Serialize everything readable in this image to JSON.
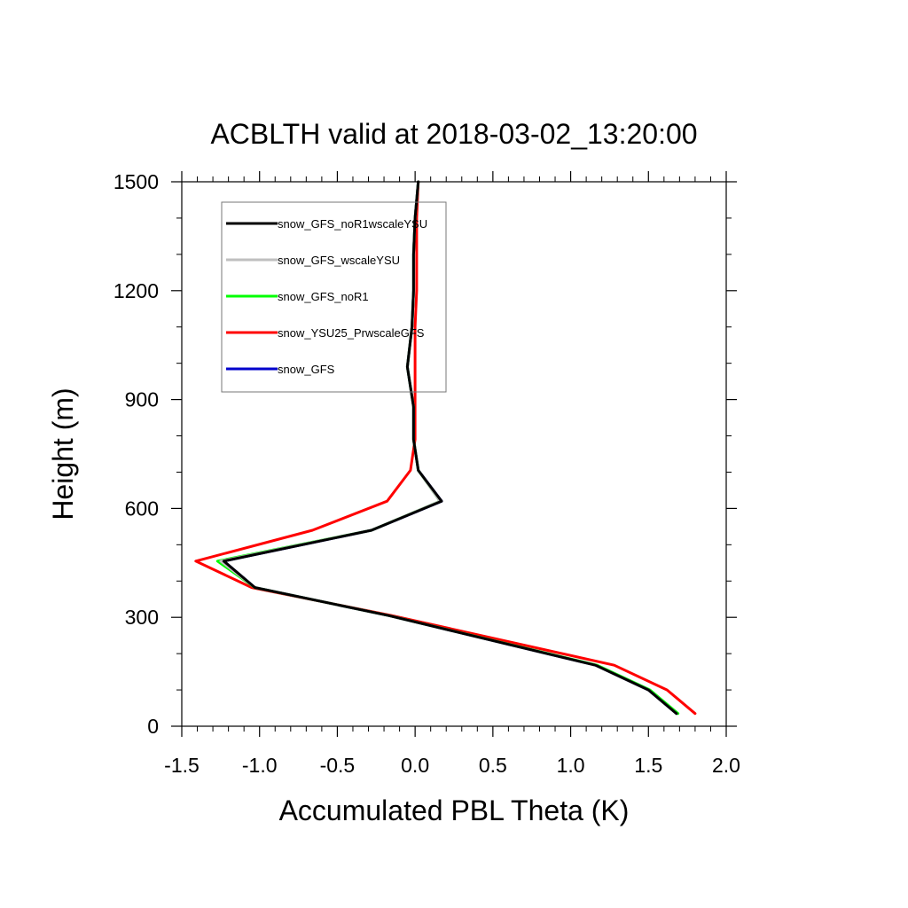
{
  "chart_data": {
    "type": "line",
    "title": "ACBLTH valid at 2018-03-02_13:20:00",
    "xlabel": "Accumulated PBL Theta (K)",
    "ylabel": "Height (m)",
    "xlim": [
      -1.5,
      2.0
    ],
    "ylim": [
      0,
      1500
    ],
    "xticks": [
      "-1.5",
      "-1.0",
      "-0.5",
      "0.0",
      "0.5",
      "1.0",
      "1.5",
      "2.0"
    ],
    "yticks": [
      "0",
      "300",
      "600",
      "900",
      "1200",
      "1500"
    ],
    "legend_position": "top-left",
    "series": [
      {
        "name": "snow_GFS_noR1wscaleYSU",
        "color": "#000000",
        "points": [
          [
            1.68,
            35
          ],
          [
            1.5,
            100
          ],
          [
            1.16,
            168
          ],
          [
            -0.17,
            305
          ],
          [
            -1.03,
            382
          ],
          [
            -1.23,
            455
          ],
          [
            -0.28,
            540
          ],
          [
            0.17,
            620
          ],
          [
            0.02,
            705
          ],
          [
            -0.01,
            790
          ],
          [
            -0.01,
            880
          ],
          [
            -0.05,
            990
          ],
          [
            -0.02,
            1100
          ],
          [
            -0.01,
            1200
          ],
          [
            -0.01,
            1300
          ],
          [
            0.0,
            1400
          ],
          [
            0.02,
            1500
          ]
        ]
      },
      {
        "name": "snow_GFS_wscaleYSU",
        "color": "#bfbfbf",
        "points": [
          [
            1.68,
            35
          ],
          [
            1.5,
            100
          ],
          [
            1.16,
            168
          ],
          [
            -0.17,
            305
          ],
          [
            -1.03,
            382
          ],
          [
            -1.25,
            455
          ],
          [
            -0.28,
            540
          ],
          [
            0.16,
            620
          ],
          [
            0.02,
            705
          ],
          [
            -0.01,
            790
          ],
          [
            -0.01,
            880
          ],
          [
            -0.05,
            990
          ],
          [
            -0.02,
            1100
          ],
          [
            -0.01,
            1200
          ],
          [
            -0.01,
            1300
          ],
          [
            0.0,
            1400
          ],
          [
            0.02,
            1500
          ]
        ]
      },
      {
        "name": "snow_GFS_noR1",
        "color": "#00ff00",
        "points": [
          [
            1.69,
            35
          ],
          [
            1.51,
            100
          ],
          [
            1.17,
            168
          ],
          [
            -0.17,
            305
          ],
          [
            -1.03,
            382
          ],
          [
            -1.27,
            455
          ],
          [
            -0.28,
            540
          ],
          [
            0.16,
            620
          ],
          [
            0.02,
            705
          ],
          [
            -0.01,
            790
          ],
          [
            -0.01,
            880
          ],
          [
            -0.05,
            990
          ],
          [
            -0.02,
            1100
          ],
          [
            -0.01,
            1200
          ],
          [
            -0.01,
            1300
          ],
          [
            0.0,
            1400
          ],
          [
            0.02,
            1500
          ]
        ]
      },
      {
        "name": "snow_YSU25_PrwscaleGFS",
        "color": "#ff0000",
        "points": [
          [
            1.8,
            35
          ],
          [
            1.62,
            100
          ],
          [
            1.28,
            168
          ],
          [
            -0.15,
            305
          ],
          [
            -1.05,
            382
          ],
          [
            -1.41,
            455
          ],
          [
            -0.66,
            540
          ],
          [
            -0.18,
            620
          ],
          [
            -0.03,
            705
          ],
          [
            0.0,
            790
          ],
          [
            0.0,
            880
          ],
          [
            0.0,
            990
          ],
          [
            0.0,
            1100
          ],
          [
            0.01,
            1200
          ],
          [
            0.01,
            1300
          ],
          [
            0.01,
            1400
          ],
          [
            0.02,
            1500
          ]
        ]
      },
      {
        "name": "snow_GFS",
        "color": "#0000cc",
        "points": [
          [
            1.68,
            35
          ],
          [
            1.5,
            100
          ],
          [
            1.16,
            168
          ],
          [
            -0.17,
            305
          ],
          [
            -1.03,
            382
          ],
          [
            -1.23,
            455
          ],
          [
            -0.28,
            540
          ],
          [
            0.17,
            620
          ],
          [
            0.02,
            705
          ],
          [
            -0.01,
            790
          ],
          [
            -0.01,
            880
          ],
          [
            -0.05,
            990
          ],
          [
            -0.02,
            1100
          ],
          [
            -0.01,
            1200
          ],
          [
            -0.01,
            1300
          ],
          [
            0.0,
            1400
          ],
          [
            0.02,
            1500
          ]
        ]
      }
    ]
  }
}
